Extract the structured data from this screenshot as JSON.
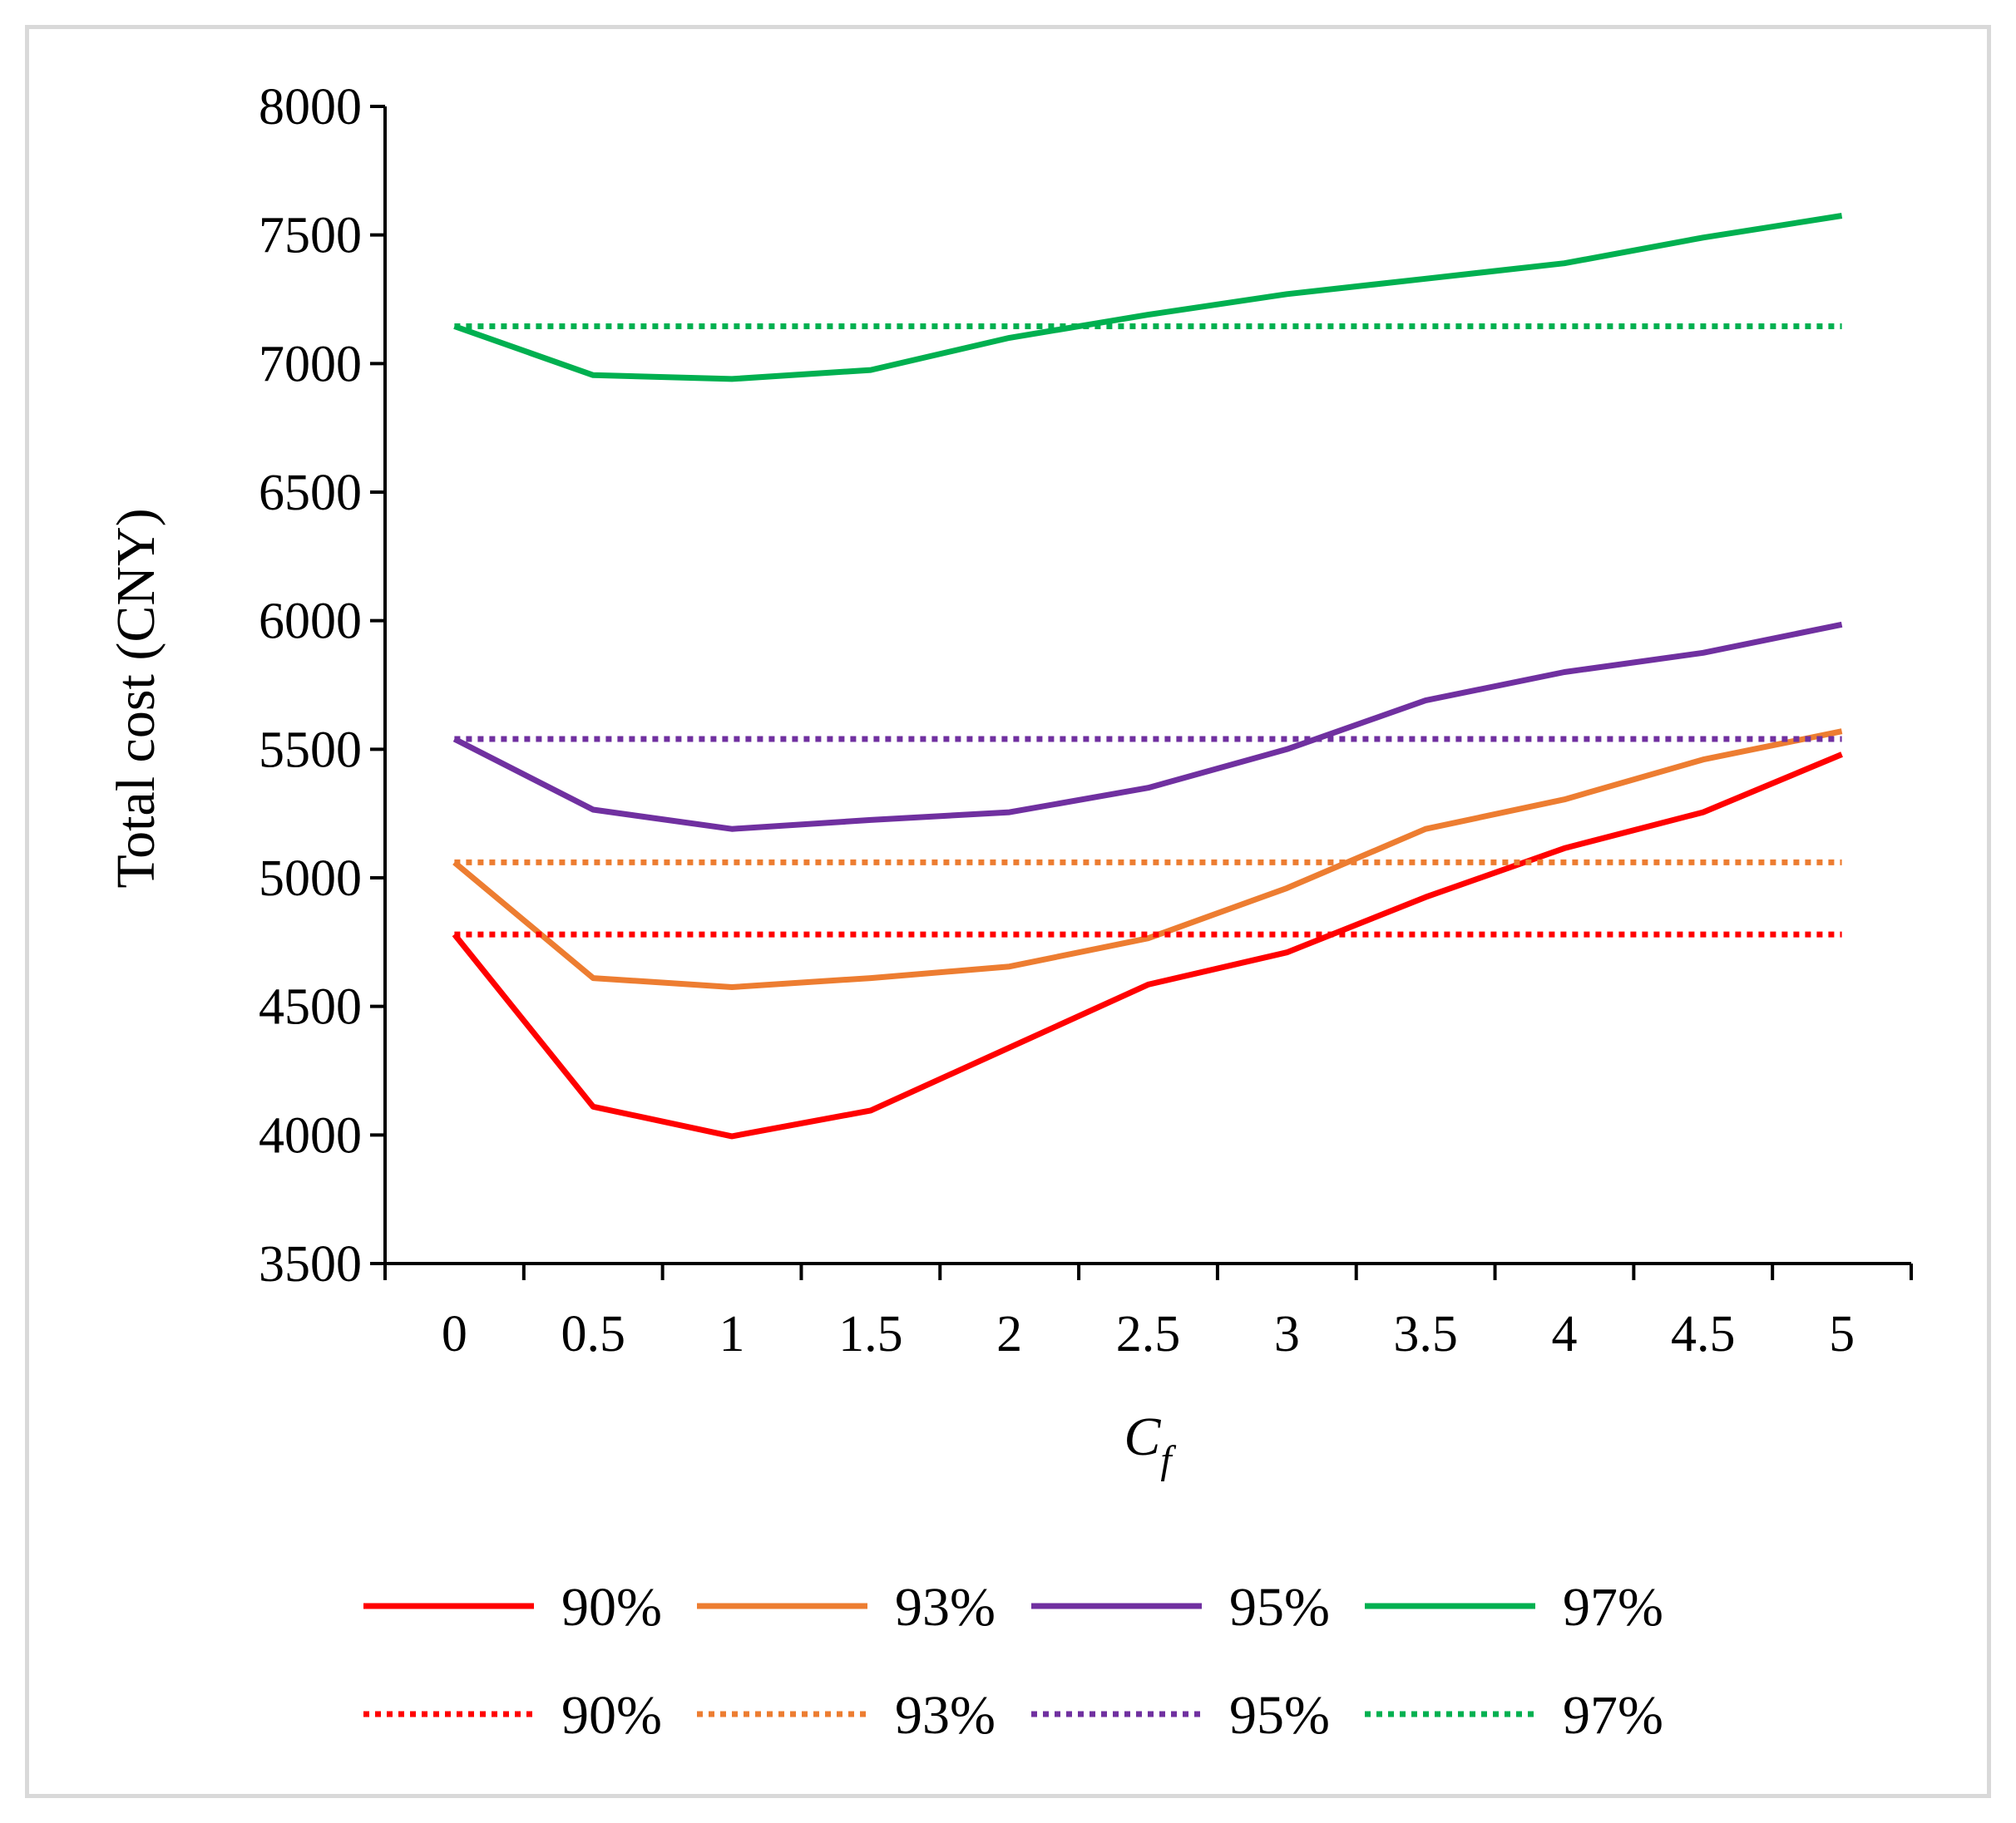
{
  "chart_data": {
    "type": "line",
    "title": "",
    "xlabel": "C",
    "xlabel_subscript": "f",
    "ylabel": "Total cost (CNY)",
    "categories": [
      "0",
      "0.5",
      "1",
      "1.5",
      "2",
      "2.5",
      "3",
      "3.5",
      "4",
      "4.5",
      "5"
    ],
    "yticks": [
      "3500",
      "4000",
      "4500",
      "5000",
      "5500",
      "6000",
      "6500",
      "7000",
      "7500",
      "8000"
    ],
    "ylim": [
      3500,
      8000
    ],
    "grid": false,
    "legend_position": "bottom",
    "series": [
      {
        "name": "90%",
        "style": "solid",
        "color": "#ff0000",
        "values": [
          4780,
          4110,
          3995,
          4095,
          4340,
          4585,
          4710,
          4925,
          5115,
          5255,
          5480
        ]
      },
      {
        "name": "93%",
        "style": "solid",
        "color": "#ed7d31",
        "values": [
          5060,
          4610,
          4575,
          4610,
          4655,
          4765,
          4960,
          5190,
          5305,
          5460,
          5570
        ]
      },
      {
        "name": "95%",
        "style": "solid",
        "color": "#7030a0",
        "values": [
          5540,
          5265,
          5190,
          5225,
          5255,
          5350,
          5500,
          5690,
          5800,
          5875,
          5985
        ]
      },
      {
        "name": "97%",
        "style": "solid",
        "color": "#00b050",
        "values": [
          7145,
          6955,
          6940,
          6975,
          7100,
          7190,
          7270,
          7330,
          7390,
          7490,
          7575
        ]
      },
      {
        "name": "90%",
        "style": "dotted",
        "color": "#ff0000",
        "values": [
          4780,
          4780,
          4780,
          4780,
          4780,
          4780,
          4780,
          4780,
          4780,
          4780,
          4780
        ]
      },
      {
        "name": "93%",
        "style": "dotted",
        "color": "#ed7d31",
        "values": [
          5060,
          5060,
          5060,
          5060,
          5060,
          5060,
          5060,
          5060,
          5060,
          5060,
          5060
        ]
      },
      {
        "name": "95%",
        "style": "dotted",
        "color": "#7030a0",
        "values": [
          5540,
          5540,
          5540,
          5540,
          5540,
          5540,
          5540,
          5540,
          5540,
          5540,
          5540
        ]
      },
      {
        "name": "97%",
        "style": "dotted",
        "color": "#00b050",
        "values": [
          7145,
          7145,
          7145,
          7145,
          7145,
          7145,
          7145,
          7145,
          7145,
          7145,
          7145
        ]
      }
    ]
  }
}
